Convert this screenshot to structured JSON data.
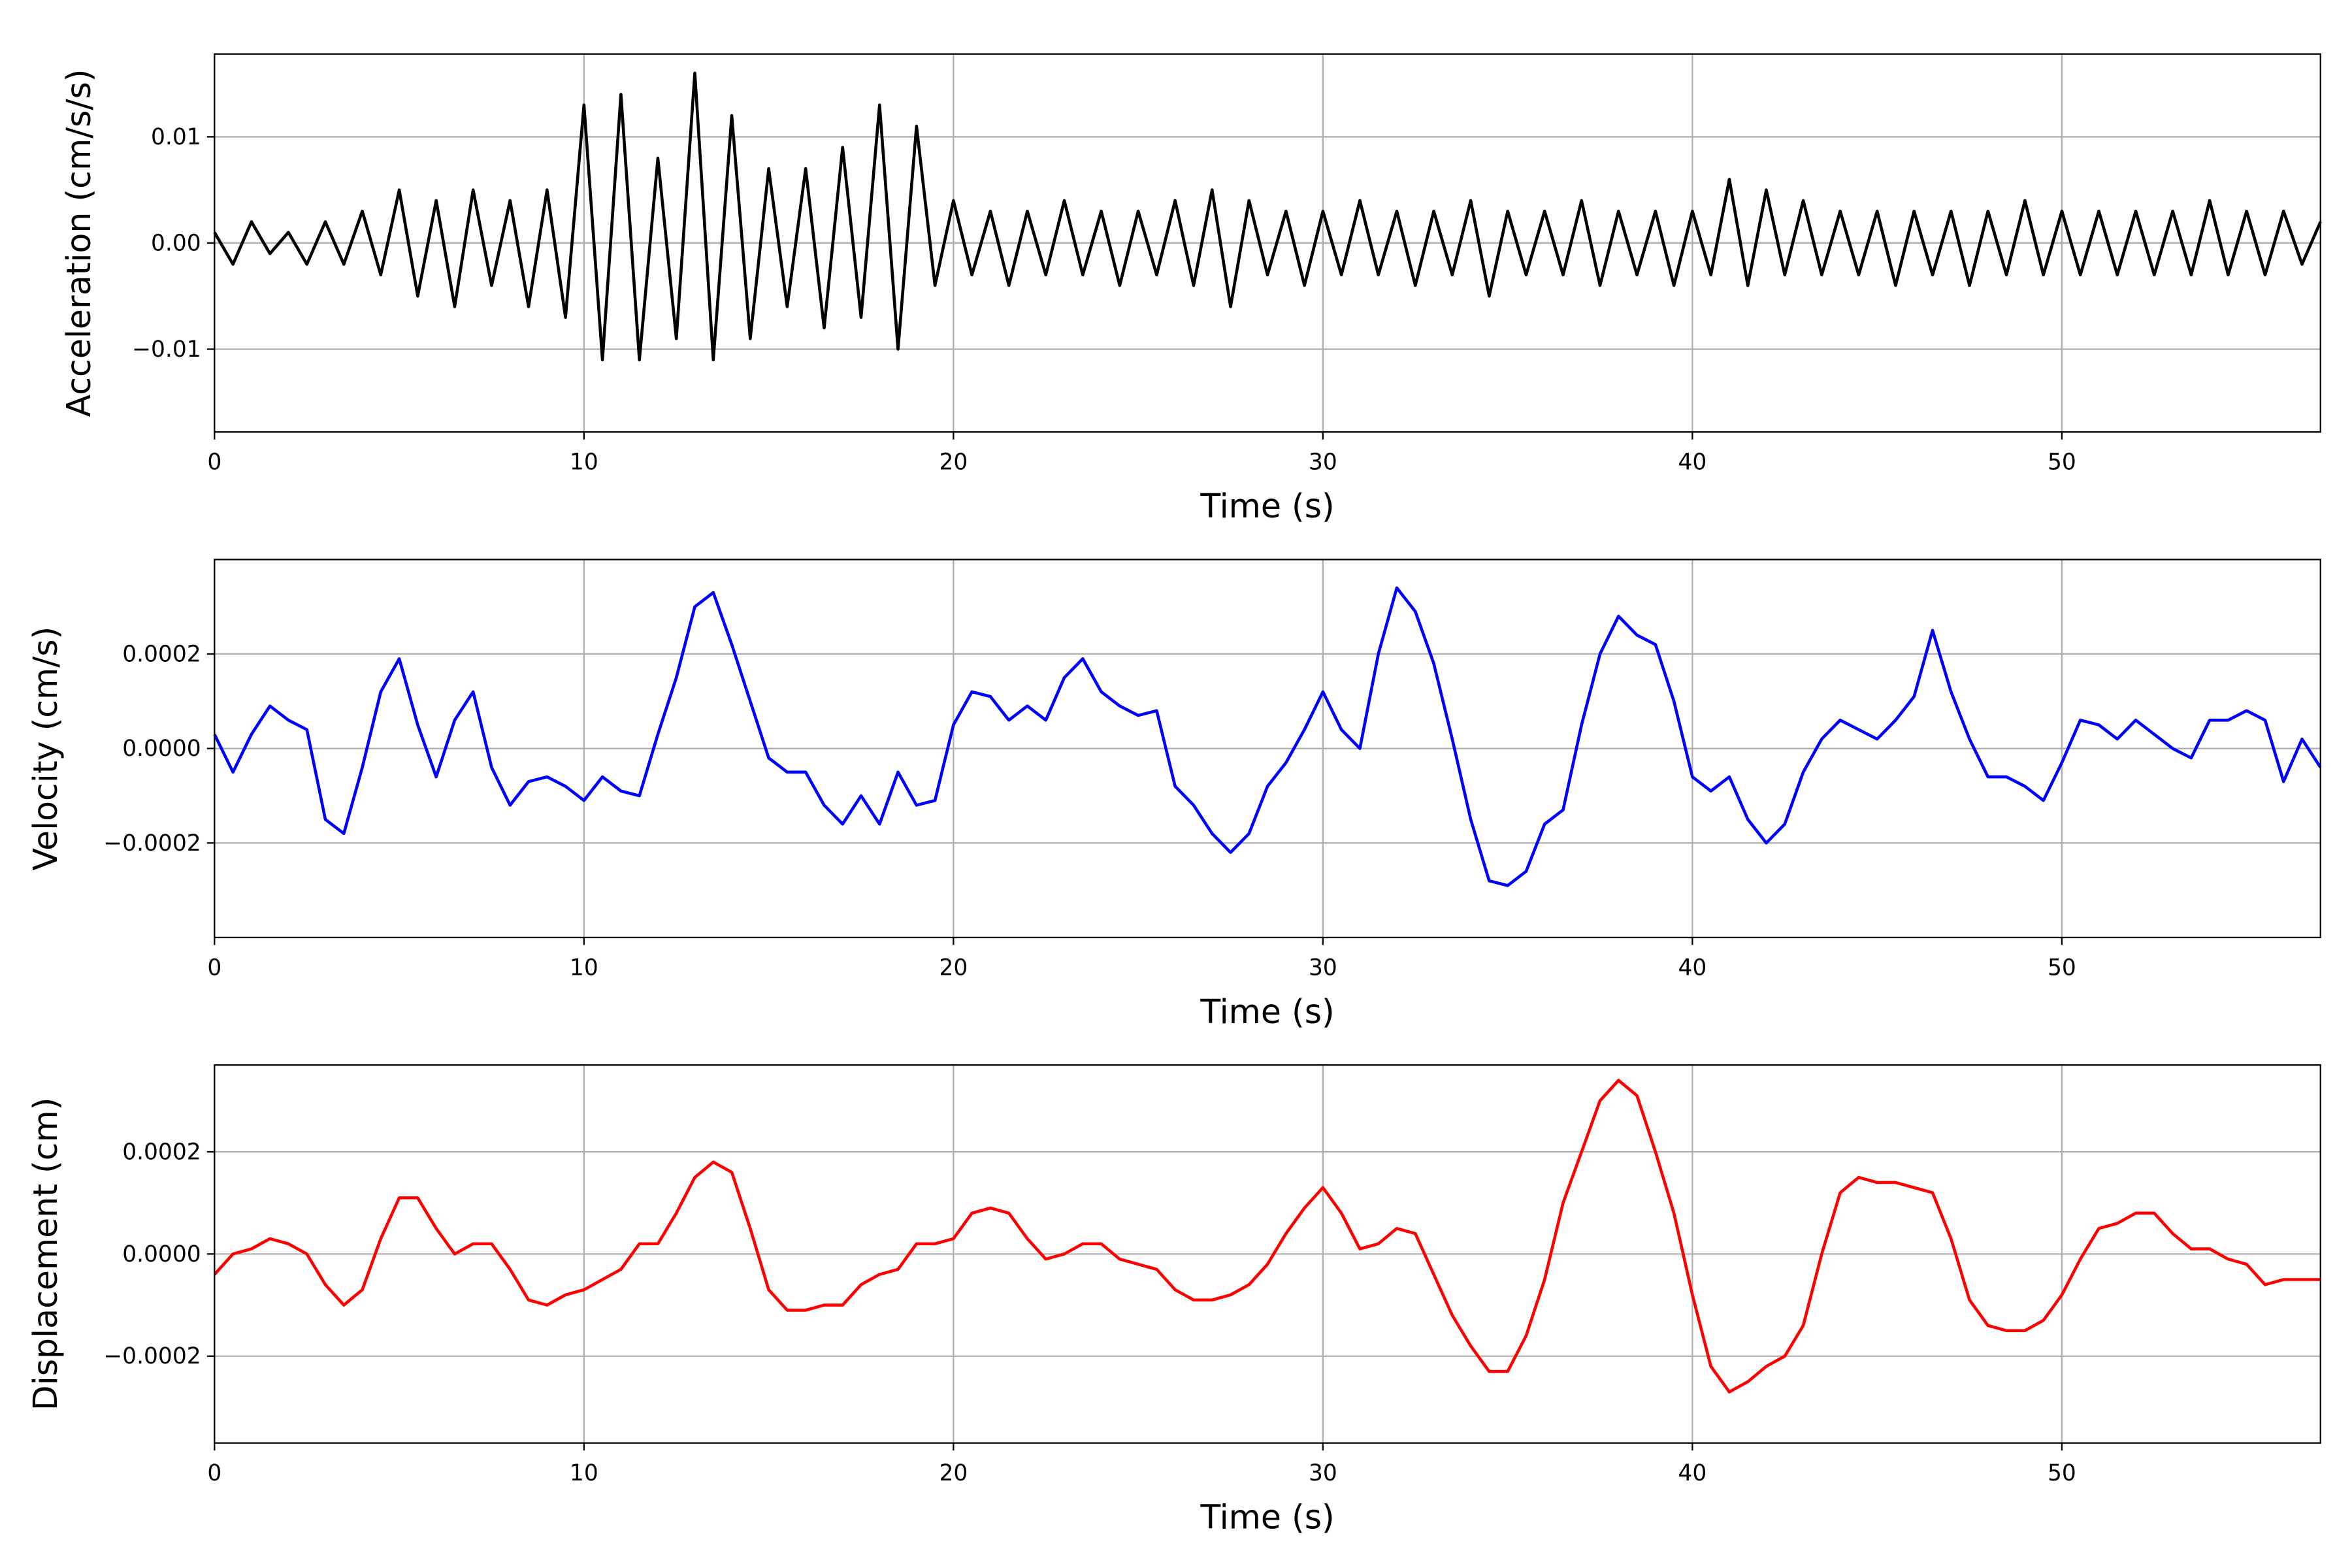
{
  "chart_data": [
    {
      "type": "line",
      "xlabel": "Time (s)",
      "ylabel": "Acceleration (cm/s/s)",
      "grid": true,
      "color": "#000000",
      "xlim": [
        0,
        57
      ],
      "xticks": [
        0,
        10,
        20,
        30,
        40,
        50
      ],
      "ylim": [
        -0.0178,
        0.0178
      ],
      "yticks": [
        {
          "value": -0.01,
          "label": "−0.01"
        },
        {
          "value": 0,
          "label": "0.00"
        },
        {
          "value": 0.01,
          "label": "0.01"
        }
      ],
      "x": [
        0,
        0.5,
        1,
        1.5,
        2,
        2.5,
        3,
        3.5,
        4,
        4.5,
        5,
        5.5,
        6,
        6.5,
        7,
        7.5,
        8,
        8.5,
        9,
        9.5,
        10,
        10.5,
        11,
        11.5,
        12,
        12.5,
        13,
        13.5,
        14,
        14.5,
        15,
        15.5,
        16,
        16.5,
        17,
        17.5,
        18,
        18.5,
        19,
        19.5,
        20,
        20.5,
        21,
        21.5,
        22,
        22.5,
        23,
        23.5,
        24,
        24.5,
        25,
        25.5,
        26,
        26.5,
        27,
        27.5,
        28,
        28.5,
        29,
        29.5,
        30,
        30.5,
        31,
        31.5,
        32,
        32.5,
        33,
        33.5,
        34,
        34.5,
        35,
        35.5,
        36,
        36.5,
        37,
        37.5,
        38,
        38.5,
        39,
        39.5,
        40,
        40.5,
        41,
        41.5,
        42,
        42.5,
        43,
        43.5,
        44,
        44.5,
        45,
        45.5,
        46,
        46.5,
        47,
        47.5,
        48,
        48.5,
        49,
        49.5,
        50,
        50.5,
        51,
        51.5,
        52,
        52.5,
        53,
        53.5,
        54,
        54.5,
        55,
        55.5,
        56,
        56.5,
        57
      ],
      "values": [
        0.001,
        -0.002,
        0.002,
        -0.001,
        0.001,
        -0.002,
        0.002,
        -0.002,
        0.003,
        -0.003,
        0.005,
        -0.005,
        0.004,
        -0.006,
        0.005,
        -0.004,
        0.004,
        -0.006,
        0.005,
        -0.007,
        0.013,
        -0.011,
        0.014,
        -0.011,
        0.008,
        -0.009,
        0.016,
        -0.011,
        0.012,
        -0.009,
        0.007,
        -0.006,
        0.007,
        -0.008,
        0.009,
        -0.007,
        0.013,
        -0.01,
        0.011,
        -0.004,
        0.004,
        -0.003,
        0.003,
        -0.004,
        0.003,
        -0.003,
        0.004,
        -0.003,
        0.003,
        -0.004,
        0.003,
        -0.003,
        0.004,
        -0.004,
        0.005,
        -0.006,
        0.004,
        -0.003,
        0.003,
        -0.004,
        0.003,
        -0.003,
        0.004,
        -0.003,
        0.003,
        -0.004,
        0.003,
        -0.003,
        0.004,
        -0.005,
        0.003,
        -0.003,
        0.003,
        -0.003,
        0.004,
        -0.004,
        0.003,
        -0.003,
        0.003,
        -0.004,
        0.003,
        -0.003,
        0.006,
        -0.004,
        0.005,
        -0.003,
        0.004,
        -0.003,
        0.003,
        -0.003,
        0.003,
        -0.004,
        0.003,
        -0.003,
        0.003,
        -0.004,
        0.003,
        -0.003,
        0.004,
        -0.003,
        0.003,
        -0.003,
        0.003,
        -0.003,
        0.003,
        -0.003,
        0.003,
        -0.003,
        0.004,
        -0.003,
        0.003,
        -0.003,
        0.003,
        -0.002,
        0.002
      ]
    },
    {
      "type": "line",
      "xlabel": "Time (s)",
      "ylabel": "Velocity (cm/s)",
      "grid": true,
      "color": "#0000ff",
      "xlim": [
        0,
        57
      ],
      "xticks": [
        0,
        10,
        20,
        30,
        40,
        50
      ],
      "ylim": [
        -0.0004,
        0.0004
      ],
      "yticks": [
        {
          "value": -0.0002,
          "label": "−0.0002"
        },
        {
          "value": 0,
          "label": "0.0000"
        },
        {
          "value": 0.0002,
          "label": "0.0002"
        }
      ],
      "x": [
        0,
        0.5,
        1,
        1.5,
        2,
        2.5,
        3,
        3.5,
        4,
        4.5,
        5,
        5.5,
        6,
        6.5,
        7,
        7.5,
        8,
        8.5,
        9,
        9.5,
        10,
        10.5,
        11,
        11.5,
        12,
        12.5,
        13,
        13.5,
        14,
        14.5,
        15,
        15.5,
        16,
        16.5,
        17,
        17.5,
        18,
        18.5,
        19,
        19.5,
        20,
        20.5,
        21,
        21.5,
        22,
        22.5,
        23,
        23.5,
        24,
        24.5,
        25,
        25.5,
        26,
        26.5,
        27,
        27.5,
        28,
        28.5,
        29,
        29.5,
        30,
        30.5,
        31,
        31.5,
        32,
        32.5,
        33,
        33.5,
        34,
        34.5,
        35,
        35.5,
        36,
        36.5,
        37,
        37.5,
        38,
        38.5,
        39,
        39.5,
        40,
        40.5,
        41,
        41.5,
        42,
        42.5,
        43,
        43.5,
        44,
        44.5,
        45,
        45.5,
        46,
        46.5,
        47,
        47.5,
        48,
        48.5,
        49,
        49.5,
        50,
        50.5,
        51,
        51.5,
        52,
        52.5,
        53,
        53.5,
        54,
        54.5,
        55,
        55.5,
        56,
        56.5,
        57
      ],
      "values": [
        3e-05,
        -5e-05,
        3e-05,
        9e-05,
        6e-05,
        4e-05,
        -0.00015,
        -0.00018,
        -4e-05,
        0.00012,
        0.00019,
        5e-05,
        -6e-05,
        6e-05,
        0.00012,
        -4e-05,
        -0.00012,
        -7e-05,
        -6e-05,
        -8e-05,
        -0.00011,
        -6e-05,
        -9e-05,
        -0.0001,
        3e-05,
        0.00015,
        0.0003,
        0.00033,
        0.00022,
        0.0001,
        -2e-05,
        -5e-05,
        -5e-05,
        -0.00012,
        -0.00016,
        -0.0001,
        -0.00016,
        -5e-05,
        -0.00012,
        -0.00011,
        5e-05,
        0.00012,
        0.00011,
        6e-05,
        9e-05,
        6e-05,
        0.00015,
        0.00019,
        0.00012,
        9e-05,
        7e-05,
        8e-05,
        -8e-05,
        -0.00012,
        -0.00018,
        -0.00022,
        -0.00018,
        -8e-05,
        -3e-05,
        4e-05,
        0.00012,
        4e-05,
        0,
        0.0002,
        0.00034,
        0.00029,
        0.00018,
        2e-05,
        -0.00015,
        -0.00028,
        -0.00029,
        -0.00026,
        -0.00016,
        -0.00013,
        5e-05,
        0.0002,
        0.00028,
        0.00024,
        0.00022,
        0.0001,
        -6e-05,
        -9e-05,
        -6e-05,
        -0.00015,
        -0.0002,
        -0.00016,
        -5e-05,
        2e-05,
        6e-05,
        4e-05,
        2e-05,
        6e-05,
        0.00011,
        0.00025,
        0.00012,
        2e-05,
        -6e-05,
        -6e-05,
        -8e-05,
        -0.00011,
        -3e-05,
        6e-05,
        5e-05,
        2e-05,
        6e-05,
        3e-05,
        0,
        -2e-05,
        6e-05,
        6e-05,
        8e-05,
        6e-05,
        -7e-05,
        2e-05,
        -4e-05
      ]
    },
    {
      "type": "line",
      "xlabel": "Time (s)",
      "ylabel": "Displacement (cm)",
      "grid": true,
      "color": "#ff0000",
      "xlim": [
        0,
        57
      ],
      "xticks": [
        0,
        10,
        20,
        30,
        40,
        50
      ],
      "ylim": [
        -0.00037,
        0.00037
      ],
      "yticks": [
        {
          "value": -0.0002,
          "label": "−0.0002"
        },
        {
          "value": 0,
          "label": "0.0000"
        },
        {
          "value": 0.0002,
          "label": "0.0002"
        }
      ],
      "x": [
        0,
        0.5,
        1,
        1.5,
        2,
        2.5,
        3,
        3.5,
        4,
        4.5,
        5,
        5.5,
        6,
        6.5,
        7,
        7.5,
        8,
        8.5,
        9,
        9.5,
        10,
        10.5,
        11,
        11.5,
        12,
        12.5,
        13,
        13.5,
        14,
        14.5,
        15,
        15.5,
        16,
        16.5,
        17,
        17.5,
        18,
        18.5,
        19,
        19.5,
        20,
        20.5,
        21,
        21.5,
        22,
        22.5,
        23,
        23.5,
        24,
        24.5,
        25,
        25.5,
        26,
        26.5,
        27,
        27.5,
        28,
        28.5,
        29,
        29.5,
        30,
        30.5,
        31,
        31.5,
        32,
        32.5,
        33,
        33.5,
        34,
        34.5,
        35,
        35.5,
        36,
        36.5,
        37,
        37.5,
        38,
        38.5,
        39,
        39.5,
        40,
        40.5,
        41,
        41.5,
        42,
        42.5,
        43,
        43.5,
        44,
        44.5,
        45,
        45.5,
        46,
        46.5,
        47,
        47.5,
        48,
        48.5,
        49,
        49.5,
        50,
        50.5,
        51,
        51.5,
        52,
        52.5,
        53,
        53.5,
        54,
        54.5,
        55,
        55.5,
        56,
        56.5,
        57
      ],
      "values": [
        -4e-05,
        0,
        1e-05,
        3e-05,
        2e-05,
        0,
        -6e-05,
        -0.0001,
        -7e-05,
        3e-05,
        0.00011,
        0.00011,
        5e-05,
        0,
        2e-05,
        2e-05,
        -3e-05,
        -9e-05,
        -0.0001,
        -8e-05,
        -7e-05,
        -5e-05,
        -3e-05,
        2e-05,
        2e-05,
        8e-05,
        0.00015,
        0.00018,
        0.00016,
        5e-05,
        -7e-05,
        -0.00011,
        -0.00011,
        -0.0001,
        -0.0001,
        -6e-05,
        -4e-05,
        -3e-05,
        2e-05,
        2e-05,
        3e-05,
        8e-05,
        9e-05,
        8e-05,
        3e-05,
        -1e-05,
        0,
        2e-05,
        2e-05,
        -1e-05,
        -2e-05,
        -3e-05,
        -7e-05,
        -9e-05,
        -9e-05,
        -8e-05,
        -6e-05,
        -2e-05,
        4e-05,
        9e-05,
        0.00013,
        8e-05,
        1e-05,
        2e-05,
        5e-05,
        4e-05,
        -4e-05,
        -0.00012,
        -0.00018,
        -0.00023,
        -0.00023,
        -0.00016,
        -5e-05,
        0.0001,
        0.0002,
        0.0003,
        0.00034,
        0.00031,
        0.0002,
        8e-05,
        -8e-05,
        -0.00022,
        -0.00027,
        -0.00025,
        -0.00022,
        -0.0002,
        -0.00014,
        0,
        0.00012,
        0.00015,
        0.00014,
        0.00014,
        0.00013,
        0.00012,
        3e-05,
        -9e-05,
        -0.00014,
        -0.00015,
        -0.00015,
        -0.00013,
        -8e-05,
        -1e-05,
        5e-05,
        6e-05,
        8e-05,
        8e-05,
        4e-05,
        1e-05,
        1e-05,
        -1e-05,
        -2e-05,
        -6e-05,
        -5e-05,
        -5e-05,
        -5e-05
      ]
    }
  ]
}
